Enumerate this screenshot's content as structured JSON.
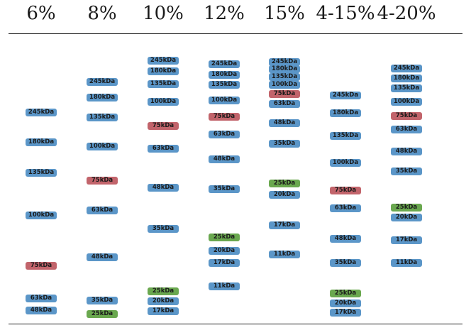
{
  "chart_data": {
    "type": "table",
    "colors": {
      "default": "#5b96c8",
      "highlight_75": "#c2646b",
      "highlight_25": "#6aa84f"
    },
    "lanes": [
      {
        "header": "6%",
        "bands": [
          {
            "label": "245kDa",
            "pos": 0.335,
            "color": "default"
          },
          {
            "label": "180kDa",
            "pos": 0.425,
            "color": "default"
          },
          {
            "label": "135kDa",
            "pos": 0.515,
            "color": "default"
          },
          {
            "label": "100kDa",
            "pos": 0.643,
            "color": "default"
          },
          {
            "label": "75kDa",
            "pos": 0.793,
            "color": "highlight_75"
          },
          {
            "label": "63kDa",
            "pos": 0.89,
            "color": "default"
          },
          {
            "label": "48kDa",
            "pos": 0.927,
            "color": "default"
          }
        ]
      },
      {
        "header": "8%",
        "bands": [
          {
            "label": "245kDa",
            "pos": 0.245,
            "color": "default"
          },
          {
            "label": "180kDa",
            "pos": 0.292,
            "color": "default"
          },
          {
            "label": "135kDa",
            "pos": 0.35,
            "color": "default"
          },
          {
            "label": "100kDa",
            "pos": 0.437,
            "color": "default"
          },
          {
            "label": "75kDa",
            "pos": 0.54,
            "color": "highlight_75"
          },
          {
            "label": "63kDa",
            "pos": 0.628,
            "color": "default"
          },
          {
            "label": "48kDa",
            "pos": 0.767,
            "color": "default"
          },
          {
            "label": "35kDa",
            "pos": 0.897,
            "color": "default"
          },
          {
            "label": "25kDa",
            "pos": 0.938,
            "color": "highlight_25"
          }
        ]
      },
      {
        "header": "10%",
        "bands": [
          {
            "label": "245kDa",
            "pos": 0.182,
            "color": "default"
          },
          {
            "label": "180kDa",
            "pos": 0.213,
            "color": "default"
          },
          {
            "label": "135kDa",
            "pos": 0.25,
            "color": "default"
          },
          {
            "label": "100kDa",
            "pos": 0.305,
            "color": "default"
          },
          {
            "label": "75kDa",
            "pos": 0.375,
            "color": "highlight_75"
          },
          {
            "label": "63kDa",
            "pos": 0.443,
            "color": "default"
          },
          {
            "label": "48kDa",
            "pos": 0.56,
            "color": "default"
          },
          {
            "label": "35kDa",
            "pos": 0.683,
            "color": "default"
          },
          {
            "label": "25kDa",
            "pos": 0.87,
            "color": "highlight_25"
          },
          {
            "label": "20kDa",
            "pos": 0.9,
            "color": "default"
          },
          {
            "label": "17kDa",
            "pos": 0.93,
            "color": "default"
          }
        ]
      },
      {
        "header": "12%",
        "bands": [
          {
            "label": "245kDa",
            "pos": 0.192,
            "color": "default"
          },
          {
            "label": "180kDa",
            "pos": 0.223,
            "color": "default"
          },
          {
            "label": "135kDa",
            "pos": 0.253,
            "color": "default"
          },
          {
            "label": "100kDa",
            "pos": 0.3,
            "color": "default"
          },
          {
            "label": "75kDa",
            "pos": 0.348,
            "color": "highlight_75"
          },
          {
            "label": "63kDa",
            "pos": 0.402,
            "color": "default"
          },
          {
            "label": "48kDa",
            "pos": 0.475,
            "color": "default"
          },
          {
            "label": "35kDa",
            "pos": 0.565,
            "color": "default"
          },
          {
            "label": "25kDa",
            "pos": 0.708,
            "color": "highlight_25"
          },
          {
            "label": "20kDa",
            "pos": 0.748,
            "color": "default"
          },
          {
            "label": "17kDa",
            "pos": 0.785,
            "color": "default"
          },
          {
            "label": "11kDa",
            "pos": 0.855,
            "color": "default"
          }
        ]
      },
      {
        "header": "15%",
        "bands": [
          {
            "label": "245kDa",
            "pos": 0.185,
            "color": "default"
          },
          {
            "label": "180kDa",
            "pos": 0.207,
            "color": "default"
          },
          {
            "label": "135kDa",
            "pos": 0.23,
            "color": "default"
          },
          {
            "label": "100kDa",
            "pos": 0.253,
            "color": "default"
          },
          {
            "label": "75kDa",
            "pos": 0.28,
            "color": "highlight_75"
          },
          {
            "label": "63kDa",
            "pos": 0.31,
            "color": "default"
          },
          {
            "label": "48kDa",
            "pos": 0.368,
            "color": "default"
          },
          {
            "label": "35kDa",
            "pos": 0.43,
            "color": "default"
          },
          {
            "label": "25kDa",
            "pos": 0.548,
            "color": "highlight_25"
          },
          {
            "label": "20kDa",
            "pos": 0.582,
            "color": "default"
          },
          {
            "label": "17kDa",
            "pos": 0.672,
            "color": "default"
          },
          {
            "label": "11kDa",
            "pos": 0.76,
            "color": "default"
          }
        ]
      },
      {
        "header": "4-15%",
        "bands": [
          {
            "label": "245kDa",
            "pos": 0.285,
            "color": "default"
          },
          {
            "label": "180kDa",
            "pos": 0.338,
            "color": "default"
          },
          {
            "label": "135kDa",
            "pos": 0.405,
            "color": "default"
          },
          {
            "label": "100kDa",
            "pos": 0.487,
            "color": "default"
          },
          {
            "label": "75kDa",
            "pos": 0.568,
            "color": "highlight_75"
          },
          {
            "label": "63kDa",
            "pos": 0.622,
            "color": "default"
          },
          {
            "label": "48kDa",
            "pos": 0.712,
            "color": "default"
          },
          {
            "label": "35kDa",
            "pos": 0.785,
            "color": "default"
          },
          {
            "label": "25kDa",
            "pos": 0.877,
            "color": "highlight_25"
          },
          {
            "label": "20kDa",
            "pos": 0.905,
            "color": "default"
          },
          {
            "label": "17kDa",
            "pos": 0.933,
            "color": "default"
          }
        ]
      },
      {
        "header": "4-20%",
        "bands": [
          {
            "label": "245kDa",
            "pos": 0.205,
            "color": "default"
          },
          {
            "label": "180kDa",
            "pos": 0.235,
            "color": "default"
          },
          {
            "label": "135kDa",
            "pos": 0.263,
            "color": "default"
          },
          {
            "label": "100kDa",
            "pos": 0.303,
            "color": "default"
          },
          {
            "label": "75kDa",
            "pos": 0.347,
            "color": "highlight_75"
          },
          {
            "label": "63kDa",
            "pos": 0.387,
            "color": "default"
          },
          {
            "label": "48kDa",
            "pos": 0.453,
            "color": "default"
          },
          {
            "label": "35kDa",
            "pos": 0.512,
            "color": "default"
          },
          {
            "label": "25kDa",
            "pos": 0.62,
            "color": "highlight_25"
          },
          {
            "label": "20kDa",
            "pos": 0.65,
            "color": "default"
          },
          {
            "label": "17kDa",
            "pos": 0.718,
            "color": "default"
          },
          {
            "label": "11kDa",
            "pos": 0.785,
            "color": "default"
          }
        ]
      }
    ]
  }
}
